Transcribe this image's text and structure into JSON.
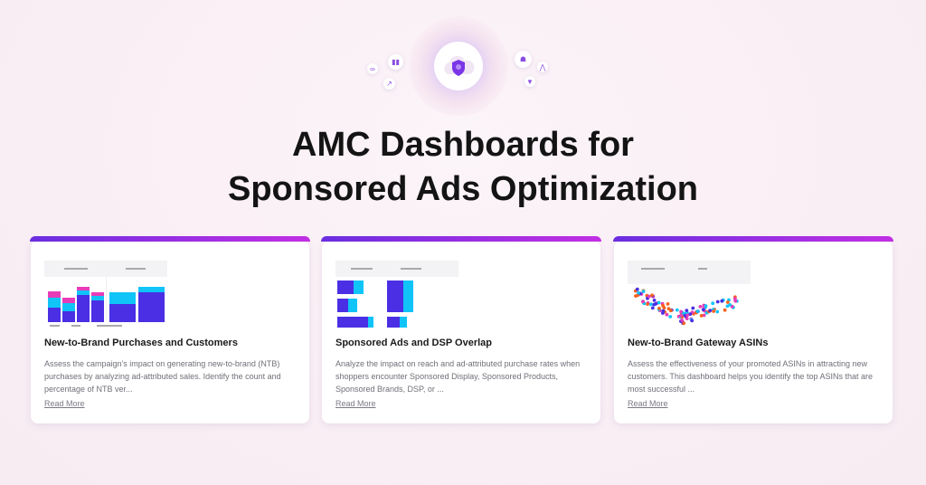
{
  "title_line1": "AMC Dashboards for",
  "title_line2": "Sponsored Ads Optimization",
  "colors": {
    "accent_start": "#6a2ee0",
    "accent_end": "#c22fe3",
    "bar_dark": "#4a2fe4",
    "bar_cyan": "#10c4f8",
    "bar_pink": "#e83cb8",
    "dot_orange": "#f4621f"
  },
  "icons": [
    "cloud-shield-icon",
    "bar-chart-icon",
    "chat-icon",
    "trend-icon",
    "users-icon",
    "network-icon",
    "filter-icon"
  ],
  "cards": [
    {
      "title": "New-to-Brand Purchases and Customers",
      "description": "Assess the campaign's impact on generating new-to-brand (NTB) purchases by analyzing ad-attributed sales. Identify the count and percentage of NTB ver...",
      "link": "Read More"
    },
    {
      "title": "Sponsored Ads and DSP Overlap",
      "description": "Analyze the impact on reach and ad-attributed purchase rates when shoppers encounter Sponsored Display, Sponsored Products, Sponsored Brands, DSP, or ...",
      "link": "Read More"
    },
    {
      "title": "New-to-Brand Gateway ASINs",
      "description": "Assess the effectiveness of your promoted ASINs in attracting new customers. This dashboard helps you identify the top ASINs that are most successful ...",
      "link": "Read More"
    }
  ]
}
